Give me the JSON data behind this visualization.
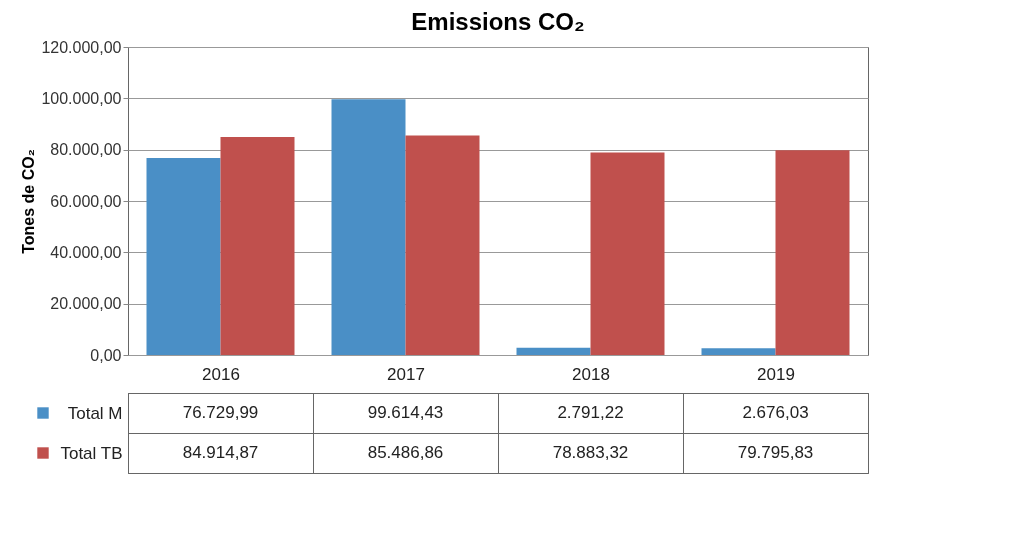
{
  "chart_data": {
    "type": "bar",
    "title": "Emissions CO₂",
    "ylabel": "Tones de CO₂",
    "categories": [
      "2016",
      "2017",
      "2018",
      "2019"
    ],
    "series": [
      {
        "name": "Total M",
        "color": "#4a8fc6",
        "values": [
          76729.99,
          99614.43,
          2791.22,
          2676.03
        ],
        "value_labels": [
          "76.729,99",
          "99.614,43",
          "2.791,22",
          "2.676,03"
        ]
      },
      {
        "name": "Total TB",
        "color": "#c0504d",
        "values": [
          84914.87,
          85486.86,
          78883.32,
          79795.83
        ],
        "value_labels": [
          "84.914,87",
          "85.486,86",
          "78.883,32",
          "79.795,83"
        ]
      }
    ],
    "ylim": [
      0,
      120000
    ],
    "yticks": [
      {
        "value": 0,
        "label": "0,00"
      },
      {
        "value": 20000,
        "label": "20.000,00"
      },
      {
        "value": 40000,
        "label": "40.000,00"
      },
      {
        "value": 60000,
        "label": "60.000,00"
      },
      {
        "value": 80000,
        "label": "80.000,00"
      },
      {
        "value": 100000,
        "label": "100.000,00"
      },
      {
        "value": 120000,
        "label": "120.000,00"
      }
    ],
    "grid": "y",
    "legend": "bottom"
  }
}
